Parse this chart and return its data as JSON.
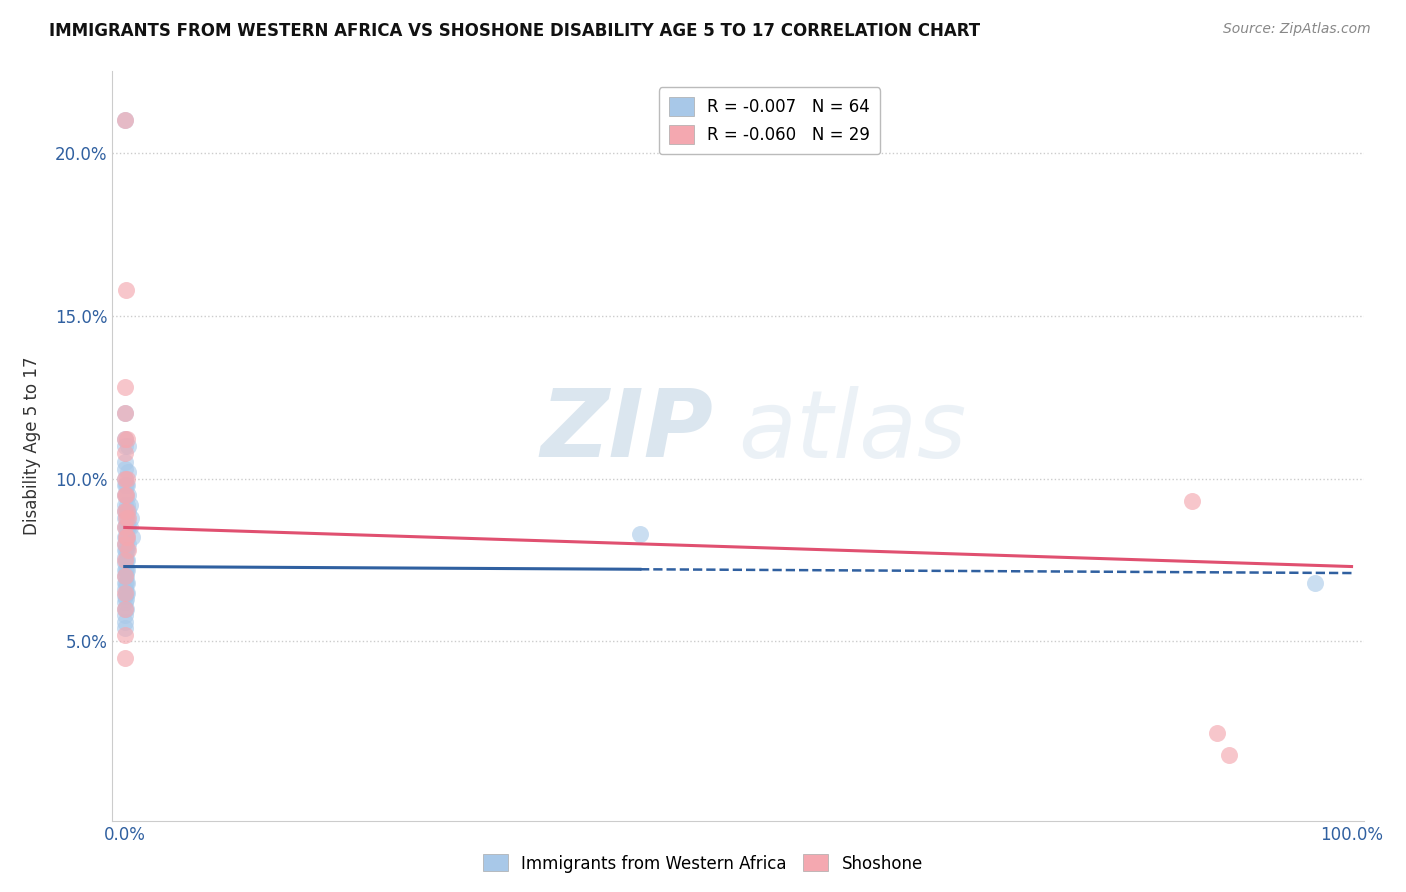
{
  "title": "IMMIGRANTS FROM WESTERN AFRICA VS SHOSHONE DISABILITY AGE 5 TO 17 CORRELATION CHART",
  "source": "Source: ZipAtlas.com",
  "ylabel": "Disability Age 5 to 17",
  "xlim": [
    -0.01,
    1.01
  ],
  "ylim": [
    -0.005,
    0.225
  ],
  "xticks": [
    0.0,
    1.0
  ],
  "xtick_labels": [
    "0.0%",
    "100.0%"
  ],
  "yticks": [
    0.05,
    0.1,
    0.15,
    0.2
  ],
  "ytick_labels": [
    "5.0%",
    "10.0%",
    "15.0%",
    "20.0%"
  ],
  "legend_blue_label": "R = -0.007   N = 64",
  "legend_pink_label": "R = -0.060   N = 29",
  "blue_scatter_color": "#a8c8e8",
  "pink_scatter_color": "#f4a8b0",
  "blue_line_color": "#3060a0",
  "pink_line_color": "#e05070",
  "watermark_zip": "ZIP",
  "watermark_atlas": "atlas",
  "blue_R": -0.007,
  "pink_R": -0.06,
  "blue_line_solid_end": 0.42,
  "blue_line_intercept": 0.073,
  "blue_line_slope": -0.002,
  "pink_line_intercept": 0.085,
  "pink_line_slope": -0.012,
  "blue_points": [
    [
      0.0,
      0.21
    ],
    [
      0.0,
      0.12
    ],
    [
      0.0,
      0.112
    ],
    [
      0.0,
      0.11
    ],
    [
      0.0,
      0.105
    ],
    [
      0.0,
      0.103
    ],
    [
      0.0,
      0.1
    ],
    [
      0.0,
      0.098
    ],
    [
      0.0,
      0.095
    ],
    [
      0.0,
      0.092
    ],
    [
      0.0,
      0.09
    ],
    [
      0.0,
      0.088
    ],
    [
      0.0,
      0.085
    ],
    [
      0.0,
      0.082
    ],
    [
      0.0,
      0.08
    ],
    [
      0.0,
      0.078
    ],
    [
      0.0,
      0.076
    ],
    [
      0.0,
      0.074
    ],
    [
      0.0,
      0.072
    ],
    [
      0.0,
      0.07
    ],
    [
      0.0,
      0.068
    ],
    [
      0.0,
      0.066
    ],
    [
      0.0,
      0.064
    ],
    [
      0.0,
      0.062
    ],
    [
      0.0,
      0.06
    ],
    [
      0.0,
      0.058
    ],
    [
      0.0,
      0.056
    ],
    [
      0.0,
      0.054
    ],
    [
      0.001,
      0.098
    ],
    [
      0.001,
      0.095
    ],
    [
      0.001,
      0.09
    ],
    [
      0.001,
      0.085
    ],
    [
      0.001,
      0.082
    ],
    [
      0.001,
      0.08
    ],
    [
      0.001,
      0.078
    ],
    [
      0.001,
      0.075
    ],
    [
      0.001,
      0.072
    ],
    [
      0.001,
      0.07
    ],
    [
      0.001,
      0.068
    ],
    [
      0.001,
      0.065
    ],
    [
      0.001,
      0.063
    ],
    [
      0.001,
      0.06
    ],
    [
      0.002,
      0.098
    ],
    [
      0.002,
      0.092
    ],
    [
      0.002,
      0.088
    ],
    [
      0.002,
      0.085
    ],
    [
      0.002,
      0.082
    ],
    [
      0.002,
      0.078
    ],
    [
      0.002,
      0.075
    ],
    [
      0.002,
      0.072
    ],
    [
      0.002,
      0.068
    ],
    [
      0.002,
      0.065
    ],
    [
      0.003,
      0.11
    ],
    [
      0.003,
      0.102
    ],
    [
      0.003,
      0.095
    ],
    [
      0.003,
      0.09
    ],
    [
      0.003,
      0.085
    ],
    [
      0.003,
      0.08
    ],
    [
      0.004,
      0.092
    ],
    [
      0.004,
      0.085
    ],
    [
      0.005,
      0.088
    ],
    [
      0.006,
      0.082
    ],
    [
      0.42,
      0.083
    ],
    [
      0.97,
      0.068
    ]
  ],
  "pink_points": [
    [
      0.0,
      0.21
    ],
    [
      0.0,
      0.128
    ],
    [
      0.0,
      0.12
    ],
    [
      0.0,
      0.112
    ],
    [
      0.0,
      0.108
    ],
    [
      0.0,
      0.1
    ],
    [
      0.0,
      0.095
    ],
    [
      0.0,
      0.09
    ],
    [
      0.0,
      0.085
    ],
    [
      0.0,
      0.08
    ],
    [
      0.0,
      0.075
    ],
    [
      0.0,
      0.07
    ],
    [
      0.0,
      0.065
    ],
    [
      0.0,
      0.06
    ],
    [
      0.0,
      0.052
    ],
    [
      0.0,
      0.045
    ],
    [
      0.001,
      0.158
    ],
    [
      0.001,
      0.095
    ],
    [
      0.001,
      0.088
    ],
    [
      0.001,
      0.082
    ],
    [
      0.002,
      0.112
    ],
    [
      0.002,
      0.1
    ],
    [
      0.002,
      0.09
    ],
    [
      0.002,
      0.082
    ],
    [
      0.003,
      0.088
    ],
    [
      0.003,
      0.078
    ],
    [
      0.87,
      0.093
    ],
    [
      0.89,
      0.022
    ],
    [
      0.9,
      0.015
    ]
  ]
}
